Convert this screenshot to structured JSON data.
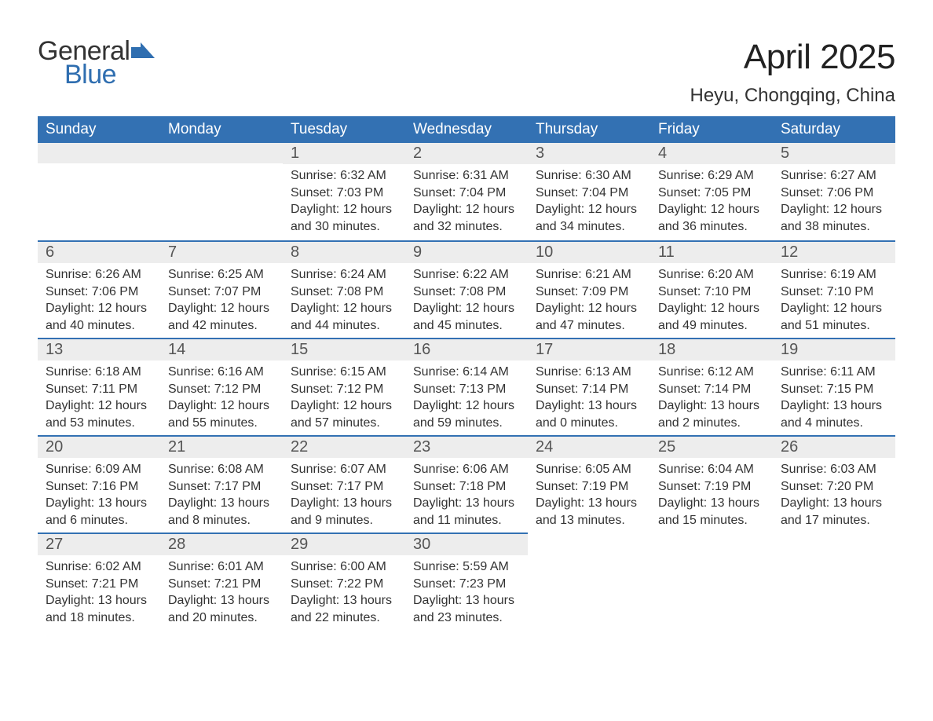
{
  "brand": {
    "word1": "General",
    "word2": "Blue",
    "flag_color": "#2f6eb0",
    "word1_color": "#333333",
    "word2_color": "#2f6eb0"
  },
  "title": "April 2025",
  "location": "Heyu, Chongqing, China",
  "colors": {
    "header_bg": "#3371b3",
    "header_text": "#ffffff",
    "daynum_bg": "#ededed",
    "daynum_border": "#3371b3",
    "body_text": "#333333",
    "page_bg": "#ffffff"
  },
  "weekdays": [
    "Sunday",
    "Monday",
    "Tuesday",
    "Wednesday",
    "Thursday",
    "Friday",
    "Saturday"
  ],
  "weeks": [
    [
      null,
      null,
      {
        "n": "1",
        "sr": "6:32 AM",
        "ss": "7:03 PM",
        "dl": "12 hours and 30 minutes."
      },
      {
        "n": "2",
        "sr": "6:31 AM",
        "ss": "7:04 PM",
        "dl": "12 hours and 32 minutes."
      },
      {
        "n": "3",
        "sr": "6:30 AM",
        "ss": "7:04 PM",
        "dl": "12 hours and 34 minutes."
      },
      {
        "n": "4",
        "sr": "6:29 AM",
        "ss": "7:05 PM",
        "dl": "12 hours and 36 minutes."
      },
      {
        "n": "5",
        "sr": "6:27 AM",
        "ss": "7:06 PM",
        "dl": "12 hours and 38 minutes."
      }
    ],
    [
      {
        "n": "6",
        "sr": "6:26 AM",
        "ss": "7:06 PM",
        "dl": "12 hours and 40 minutes."
      },
      {
        "n": "7",
        "sr": "6:25 AM",
        "ss": "7:07 PM",
        "dl": "12 hours and 42 minutes."
      },
      {
        "n": "8",
        "sr": "6:24 AM",
        "ss": "7:08 PM",
        "dl": "12 hours and 44 minutes."
      },
      {
        "n": "9",
        "sr": "6:22 AM",
        "ss": "7:08 PM",
        "dl": "12 hours and 45 minutes."
      },
      {
        "n": "10",
        "sr": "6:21 AM",
        "ss": "7:09 PM",
        "dl": "12 hours and 47 minutes."
      },
      {
        "n": "11",
        "sr": "6:20 AM",
        "ss": "7:10 PM",
        "dl": "12 hours and 49 minutes."
      },
      {
        "n": "12",
        "sr": "6:19 AM",
        "ss": "7:10 PM",
        "dl": "12 hours and 51 minutes."
      }
    ],
    [
      {
        "n": "13",
        "sr": "6:18 AM",
        "ss": "7:11 PM",
        "dl": "12 hours and 53 minutes."
      },
      {
        "n": "14",
        "sr": "6:16 AM",
        "ss": "7:12 PM",
        "dl": "12 hours and 55 minutes."
      },
      {
        "n": "15",
        "sr": "6:15 AM",
        "ss": "7:12 PM",
        "dl": "12 hours and 57 minutes."
      },
      {
        "n": "16",
        "sr": "6:14 AM",
        "ss": "7:13 PM",
        "dl": "12 hours and 59 minutes."
      },
      {
        "n": "17",
        "sr": "6:13 AM",
        "ss": "7:14 PM",
        "dl": "13 hours and 0 minutes."
      },
      {
        "n": "18",
        "sr": "6:12 AM",
        "ss": "7:14 PM",
        "dl": "13 hours and 2 minutes."
      },
      {
        "n": "19",
        "sr": "6:11 AM",
        "ss": "7:15 PM",
        "dl": "13 hours and 4 minutes."
      }
    ],
    [
      {
        "n": "20",
        "sr": "6:09 AM",
        "ss": "7:16 PM",
        "dl": "13 hours and 6 minutes."
      },
      {
        "n": "21",
        "sr": "6:08 AM",
        "ss": "7:17 PM",
        "dl": "13 hours and 8 minutes."
      },
      {
        "n": "22",
        "sr": "6:07 AM",
        "ss": "7:17 PM",
        "dl": "13 hours and 9 minutes."
      },
      {
        "n": "23",
        "sr": "6:06 AM",
        "ss": "7:18 PM",
        "dl": "13 hours and 11 minutes."
      },
      {
        "n": "24",
        "sr": "6:05 AM",
        "ss": "7:19 PM",
        "dl": "13 hours and 13 minutes."
      },
      {
        "n": "25",
        "sr": "6:04 AM",
        "ss": "7:19 PM",
        "dl": "13 hours and 15 minutes."
      },
      {
        "n": "26",
        "sr": "6:03 AM",
        "ss": "7:20 PM",
        "dl": "13 hours and 17 minutes."
      }
    ],
    [
      {
        "n": "27",
        "sr": "6:02 AM",
        "ss": "7:21 PM",
        "dl": "13 hours and 18 minutes."
      },
      {
        "n": "28",
        "sr": "6:01 AM",
        "ss": "7:21 PM",
        "dl": "13 hours and 20 minutes."
      },
      {
        "n": "29",
        "sr": "6:00 AM",
        "ss": "7:22 PM",
        "dl": "13 hours and 22 minutes."
      },
      {
        "n": "30",
        "sr": "5:59 AM",
        "ss": "7:23 PM",
        "dl": "13 hours and 23 minutes."
      },
      null,
      null,
      null
    ]
  ],
  "labels": {
    "sunrise": "Sunrise: ",
    "sunset": "Sunset: ",
    "daylight": "Daylight: "
  }
}
